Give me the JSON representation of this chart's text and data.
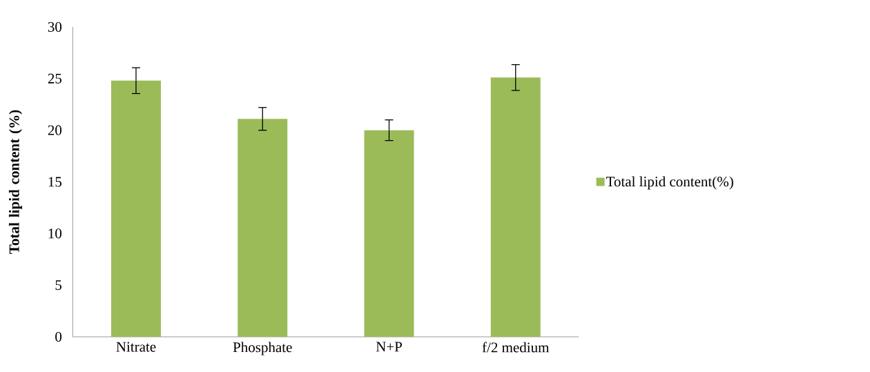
{
  "chart_data": {
    "type": "bar",
    "ylabel": "Total lipid content (%)",
    "categories": [
      "Nitrate",
      "Phosphate",
      "N+P",
      "f/2 medium"
    ],
    "series": [
      {
        "name": "Total lipid content(%)",
        "color": "#9bbb59",
        "values": [
          24.8,
          21.1,
          20.0,
          25.1
        ],
        "errors": [
          1.25,
          1.1,
          1.0,
          1.25
        ]
      }
    ],
    "ylim": [
      0,
      30
    ],
    "yticks": [
      0,
      5,
      10,
      15,
      20,
      25,
      30
    ],
    "grid": false,
    "legend": "right"
  }
}
